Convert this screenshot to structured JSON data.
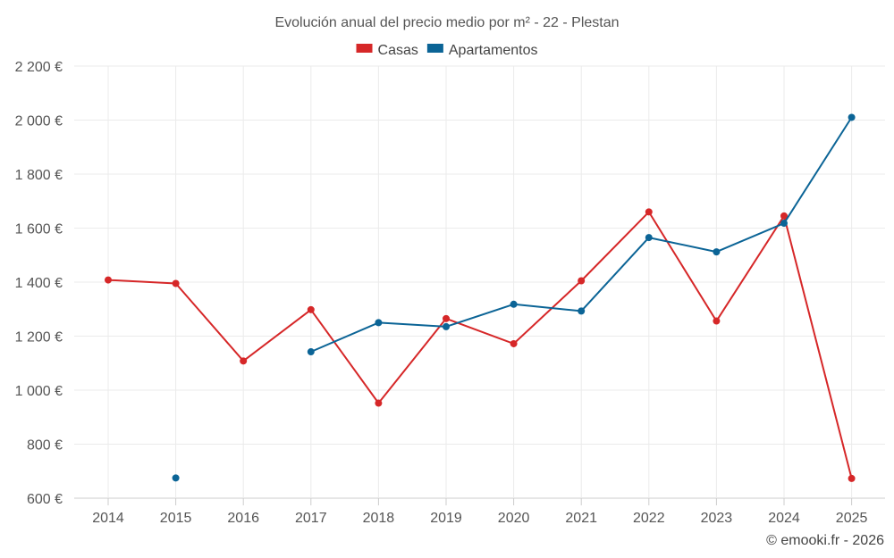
{
  "chart_data": {
    "type": "line",
    "title": "Evolución anual del precio medio por m² - 22 - Plestan",
    "categories": [
      "2014",
      "2015",
      "2016",
      "2017",
      "2018",
      "2019",
      "2020",
      "2021",
      "2022",
      "2023",
      "2024",
      "2025"
    ],
    "series": [
      {
        "name": "Casas",
        "color": "#d62728",
        "values": [
          1408,
          1395,
          1108,
          1298,
          952,
          1265,
          1172,
          1405,
          1660,
          1256,
          1645,
          673
        ]
      },
      {
        "name": "Apartamentos",
        "color": "#0b6496",
        "values": [
          null,
          675,
          null,
          1142,
          1250,
          1235,
          1318,
          1293,
          1565,
          1512,
          1618,
          2010
        ]
      }
    ],
    "ylim": [
      600,
      2200
    ],
    "yticks": [
      600,
      800,
      1000,
      1200,
      1400,
      1600,
      1800,
      2000,
      2200
    ],
    "ytick_labels": [
      "600 €",
      "800 €",
      "1 000 €",
      "1 200 €",
      "1 400 €",
      "1 600 €",
      "1 800 €",
      "2 000 €",
      "2 200 €"
    ],
    "xlabel": "",
    "ylabel": "",
    "legend_position": "top-center",
    "grid": true
  },
  "credit": "© emooki.fr - 2026"
}
